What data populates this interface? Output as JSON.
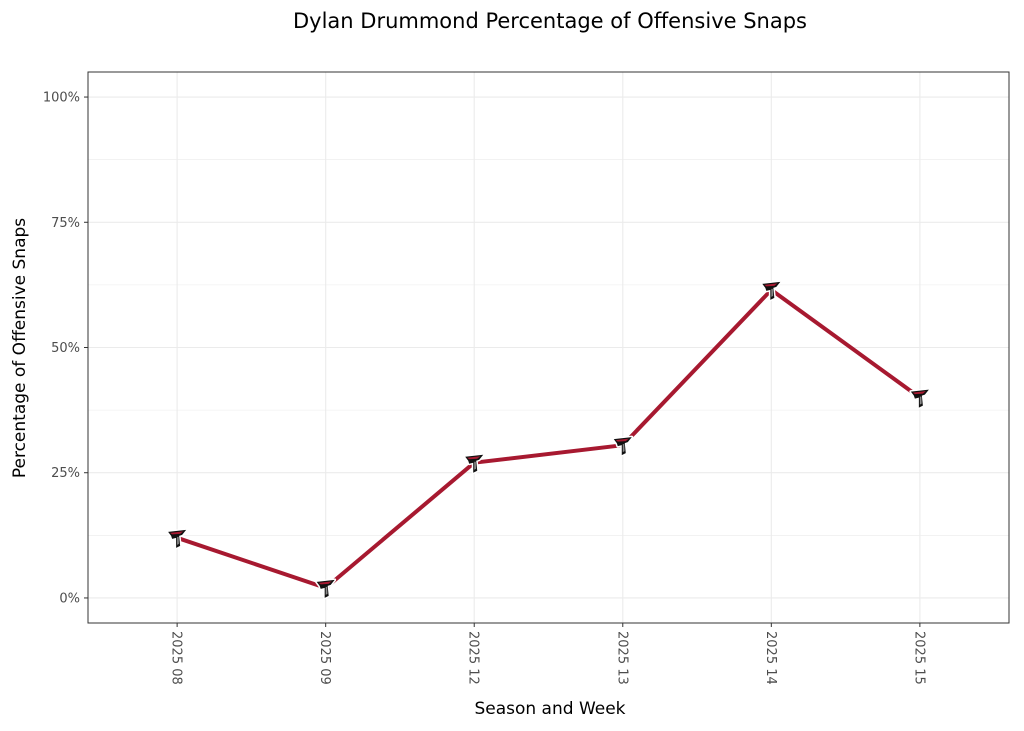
{
  "chart_data": {
    "type": "line",
    "title": "Dylan Drummond Percentage of Offensive Snaps",
    "xlabel": "Season and Week",
    "ylabel": "Percentage of Offensive Snaps",
    "categories": [
      "2025 08",
      "2025 09",
      "2025 12",
      "2025 13",
      "2025 14",
      "2025 15"
    ],
    "series": [
      {
        "name": "Dylan Drummond",
        "values": [
          12,
          2,
          27,
          30.5,
          61.5,
          40
        ],
        "color": "#a71930",
        "marker": "falcons-logo-icon"
      }
    ],
    "ylim": [
      -5,
      105
    ],
    "yticks": [
      0,
      25,
      50,
      75,
      100
    ],
    "ytick_labels": [
      "0%",
      "25%",
      "50%",
      "75%",
      "100%"
    ],
    "grid": true,
    "legend": "none"
  }
}
